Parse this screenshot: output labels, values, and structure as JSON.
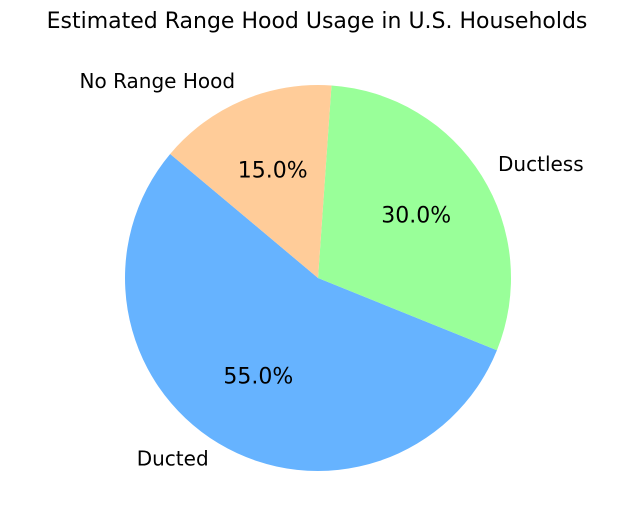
{
  "chart_data": {
    "type": "pie",
    "title": "Estimated Range Hood Usage in U.S. Households",
    "categories": [
      "Ducted",
      "Ductless",
      "No Range Hood"
    ],
    "values": [
      55,
      30,
      15
    ],
    "value_labels": [
      "55.0%",
      "30.0%",
      "15.0%"
    ],
    "colors": [
      "#66b3ff",
      "#99ff99",
      "#ffcc99"
    ],
    "start_angle": 140
  }
}
